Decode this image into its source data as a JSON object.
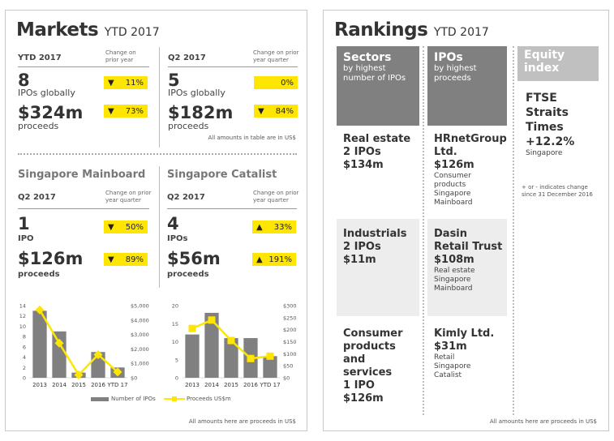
{
  "markets": {
    "title": "Markets",
    "title_suffix": "YTD 2017",
    "ytd": {
      "header": "YTD 2017",
      "change_label": "Change on prior year",
      "ipos": "8",
      "ipos_label": "IPOs globally",
      "ipos_change": "11%",
      "ipos_dir": "▼",
      "proceeds": "$324m",
      "proceeds_label": "proceeds",
      "proceeds_change": "73%",
      "proceeds_dir": "▼"
    },
    "q2": {
      "header": "Q2 2017",
      "change_label": "Change on prior year quarter",
      "ipos": "5",
      "ipos_label": "IPOs globally",
      "ipos_change": "0%",
      "ipos_dir": "",
      "proceeds": "$182m",
      "proceeds_label": "proceeds",
      "proceeds_change": "84%",
      "proceeds_dir": "▼"
    },
    "table_note": "All amounts in table are in US$",
    "mainboard": {
      "title": "Singapore Mainboard",
      "header": "Q2 2017",
      "change_label": "Change on prior year quarter",
      "ipos": "1",
      "ipos_label": "IPO",
      "ipos_change": "50%",
      "ipos_dir": "▼",
      "proceeds": "$126m",
      "proceeds_label": "proceeds",
      "proceeds_change": "89%",
      "proceeds_dir": "▼"
    },
    "catalist": {
      "title": "Singapore Catalist",
      "header": "Q2 2017",
      "change_label": "Change on prior year quarter",
      "ipos": "4",
      "ipos_label": "IPOs",
      "ipos_change": "33%",
      "ipos_dir": "▲",
      "proceeds": "$56m",
      "proceeds_label": "proceeds",
      "proceeds_change": "191%",
      "proceeds_dir": "▲"
    },
    "legend": {
      "bars": "Number of IPOs",
      "line": "Proceeds US$m"
    },
    "footer": "All amounts here are proceeds in US$"
  },
  "chart_data": [
    {
      "type": "bar",
      "categories": [
        "2013",
        "2014",
        "2015",
        "2016",
        "YTD 17"
      ],
      "series": [
        {
          "name": "Number of IPOs",
          "values": [
            13,
            9,
            1,
            5,
            2
          ],
          "axis": "left"
        },
        {
          "name": "Proceeds US$m",
          "type": "line",
          "values": [
            4700,
            2400,
            200,
            1600,
            400
          ],
          "axis": "right"
        }
      ],
      "ylim": [
        0,
        14
      ],
      "yticks": [
        "0",
        "2",
        "4",
        "6",
        "8",
        "10",
        "12",
        "14"
      ],
      "y2lim": [
        0,
        5000
      ],
      "y2ticks": [
        "$0",
        "$1,000",
        "$2,000",
        "$3,000",
        "$4,000",
        "$5,000"
      ],
      "colors": {
        "bar": "#808080",
        "line": "#ffe600"
      }
    },
    {
      "type": "bar",
      "categories": [
        "2013",
        "2014",
        "2015",
        "2016",
        "YTD 17"
      ],
      "series": [
        {
          "name": "Number of IPOs",
          "values": [
            12,
            18,
            11,
            11,
            6
          ],
          "axis": "left"
        },
        {
          "name": "Proceeds US$m",
          "type": "line",
          "values": [
            205,
            240,
            155,
            80,
            90
          ],
          "axis": "right"
        }
      ],
      "ylim": [
        0,
        20
      ],
      "yticks": [
        "0",
        "5",
        "10",
        "15",
        "20"
      ],
      "y2lim": [
        0,
        300
      ],
      "y2ticks": [
        "$0",
        "$50",
        "$100",
        "$150",
        "$200",
        "$250",
        "$300"
      ],
      "colors": {
        "bar": "#808080",
        "line": "#ffe600"
      }
    }
  ],
  "rankings": {
    "title": "Rankings",
    "title_suffix": "YTD 2017",
    "sectors": {
      "head": "Sectors",
      "sub": "by highest number of IPOs",
      "items": [
        {
          "name": "Real estate",
          "ipos": "2 IPOs",
          "proceeds": "$134m"
        },
        {
          "name": "Industrials",
          "ipos": "2 IPOs",
          "proceeds": "$11m"
        },
        {
          "name": "Consumer products and services",
          "ipos": "1 IPO",
          "proceeds": "$126m"
        }
      ]
    },
    "ipos": {
      "head": "IPOs",
      "sub": "by highest proceeds",
      "items": [
        {
          "name": "HRnetGroup Ltd.",
          "proceeds": "$126m",
          "sector": "Consumer products",
          "market": "Singapore Mainboard"
        },
        {
          "name": "Dasin Retail Trust",
          "proceeds": "$108m",
          "sector": "Real estate",
          "market": "Singapore Mainboard"
        },
        {
          "name": "Kimly Ltd.",
          "proceeds": "$31m",
          "sector": "Retail",
          "market": "Singapore Catalist"
        }
      ]
    },
    "equity": {
      "head": "Equity index",
      "name": "FTSE Straits Times",
      "change": "+12.2%",
      "market": "Singapore",
      "note": "+ or - indicates change since 31 December 2016"
    },
    "footer": "All amounts here are proceeds in US$"
  },
  "colors": {
    "accent": "#ffe600",
    "dark_gray": "#808080",
    "light_gray": "#c0c0c0",
    "row_bg": "#ededed"
  }
}
